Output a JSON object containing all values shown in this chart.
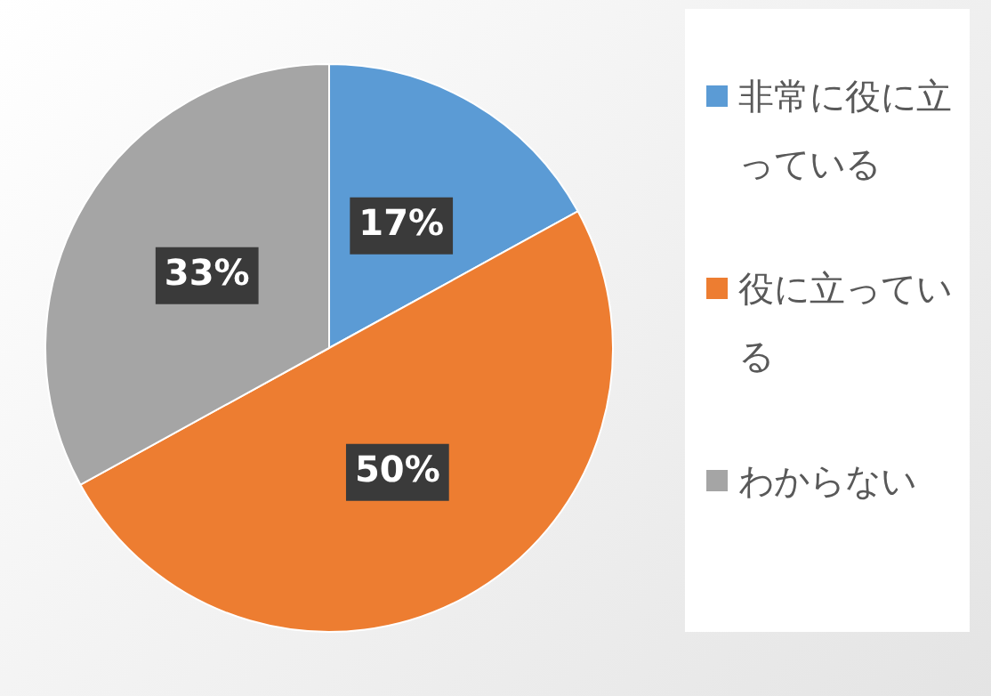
{
  "chart_data": {
    "type": "pie",
    "categories": [
      "非常に役に立っている",
      "役に立っている",
      "わからない"
    ],
    "values": [
      17,
      50,
      33
    ],
    "colors": [
      "#5b9bd5",
      "#ed7d31",
      "#a5a5a5"
    ],
    "value_labels": [
      "17%",
      "50%",
      "33%"
    ],
    "legend": "right"
  }
}
